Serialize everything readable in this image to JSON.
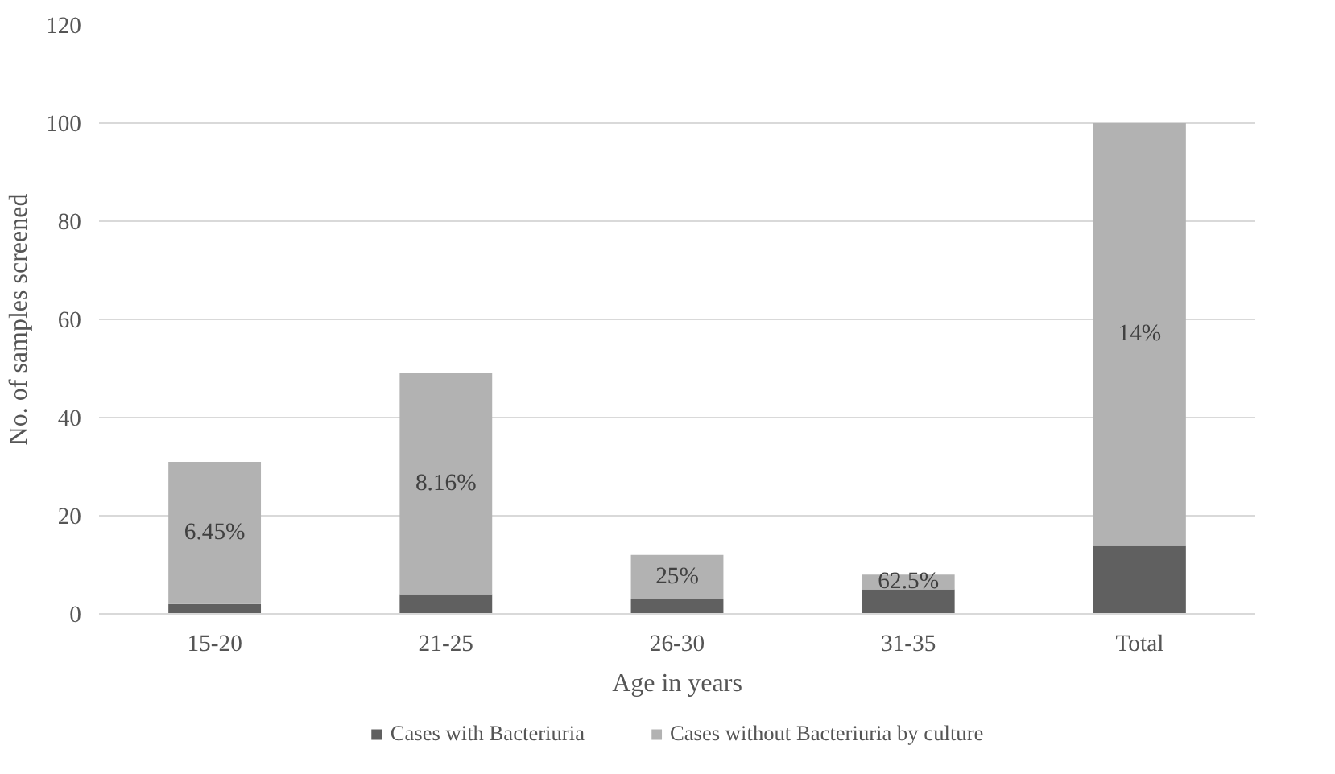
{
  "chart_data": {
    "type": "bar",
    "stacked": true,
    "xlabel": "Age in years",
    "ylabel": "No. of samples screened",
    "categories": [
      "15-20",
      "21-25",
      "26-30",
      "31-35",
      "Total"
    ],
    "series": [
      {
        "name": "Cases with Bacteriuria",
        "color": "#606060",
        "values": [
          2,
          4,
          3,
          5,
          14
        ]
      },
      {
        "name": "Cases without Bacteriuria by culture",
        "color": "#b2b2b2",
        "values": [
          29,
          45,
          9,
          3,
          86
        ]
      }
    ],
    "ylim": [
      0,
      120
    ],
    "yticks": [
      0,
      20,
      40,
      60,
      80,
      100,
      120
    ],
    "grid": "y",
    "legend": "bottom",
    "annotations": [
      "6.45%",
      "8.16%",
      "25%",
      "62.5%",
      "14%"
    ]
  }
}
